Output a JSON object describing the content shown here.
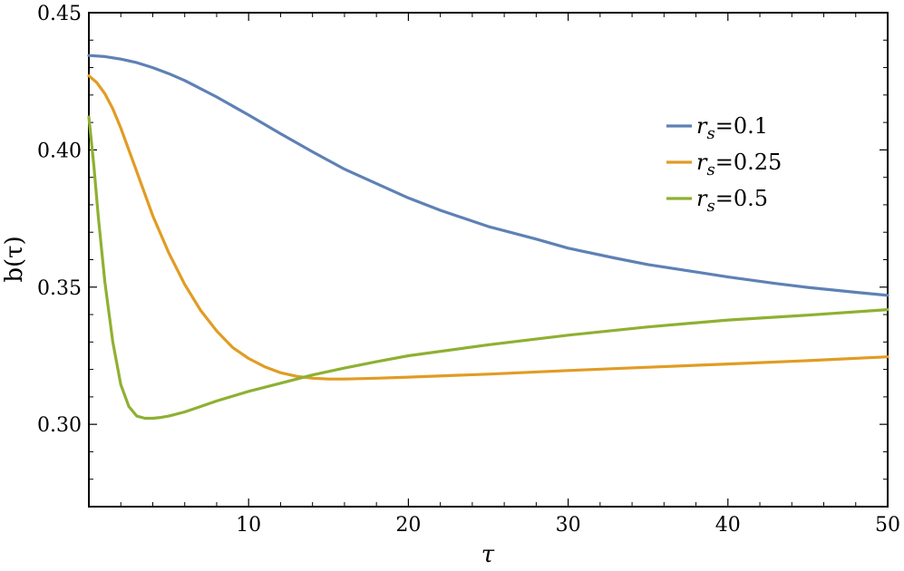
{
  "chart_data": {
    "type": "line",
    "xlabel": "τ",
    "ylabel": "b(τ)",
    "xlim": [
      0,
      50
    ],
    "ylim": [
      0.27,
      0.45
    ],
    "x_ticks": [
      10,
      20,
      30,
      40,
      50
    ],
    "x_tick_labels": [
      "10",
      "20",
      "30",
      "40",
      "50"
    ],
    "y_ticks": [
      0.3,
      0.35,
      0.4,
      0.45
    ],
    "y_tick_labels": [
      "0.30",
      "0.35",
      "0.40",
      "0.45"
    ],
    "grid": false,
    "legend_position": "upper-right",
    "series": [
      {
        "name": "r_s=0.1",
        "label_var": "r",
        "label_sub": "s",
        "label_value": "=0.1",
        "color": "#5E81B5",
        "x": [
          0,
          1,
          2,
          3,
          4,
          5,
          6,
          8,
          10,
          12,
          14,
          16,
          18,
          20,
          22,
          25,
          28,
          30,
          33,
          35,
          38,
          40,
          43,
          45,
          48,
          50
        ],
        "y": [
          0.4344,
          0.434,
          0.4331,
          0.4318,
          0.43,
          0.4278,
          0.4253,
          0.4193,
          0.4127,
          0.4059,
          0.3993,
          0.393,
          0.3877,
          0.3825,
          0.378,
          0.3721,
          0.3675,
          0.3642,
          0.3605,
          0.3582,
          0.3555,
          0.3537,
          0.3513,
          0.3499,
          0.3481,
          0.347
        ]
      },
      {
        "name": "r_s=0.25",
        "label_var": "r",
        "label_sub": "s",
        "label_value": "=0.25",
        "color": "#E19C24",
        "x": [
          0,
          0.5,
          1,
          1.5,
          2,
          3,
          4,
          5,
          6,
          7,
          8,
          9,
          10,
          11,
          12,
          13,
          14,
          15,
          16,
          18,
          20,
          25,
          30,
          35,
          40,
          45,
          50
        ],
        "y": [
          0.427,
          0.4245,
          0.4205,
          0.415,
          0.408,
          0.392,
          0.376,
          0.3625,
          0.351,
          0.3415,
          0.334,
          0.328,
          0.324,
          0.321,
          0.3188,
          0.3175,
          0.3168,
          0.3165,
          0.3165,
          0.3168,
          0.3172,
          0.3183,
          0.3196,
          0.3208,
          0.322,
          0.3232,
          0.3246
        ]
      },
      {
        "name": "r_s=0.5",
        "label_var": "r",
        "label_sub": "s",
        "label_value": "=0.5",
        "color": "#8FB032",
        "x": [
          0,
          0.3,
          0.6,
          1,
          1.5,
          2,
          2.5,
          3,
          3.5,
          4,
          4.5,
          5,
          6,
          7,
          8,
          10,
          12,
          14,
          16,
          18,
          20,
          25,
          30,
          35,
          40,
          45,
          50
        ],
        "y": [
          0.412,
          0.395,
          0.375,
          0.352,
          0.33,
          0.3145,
          0.3065,
          0.303,
          0.3022,
          0.3022,
          0.3025,
          0.303,
          0.3045,
          0.3065,
          0.3085,
          0.312,
          0.315,
          0.318,
          0.3205,
          0.3228,
          0.325,
          0.329,
          0.3325,
          0.3355,
          0.338,
          0.3398,
          0.3418
        ]
      }
    ]
  }
}
